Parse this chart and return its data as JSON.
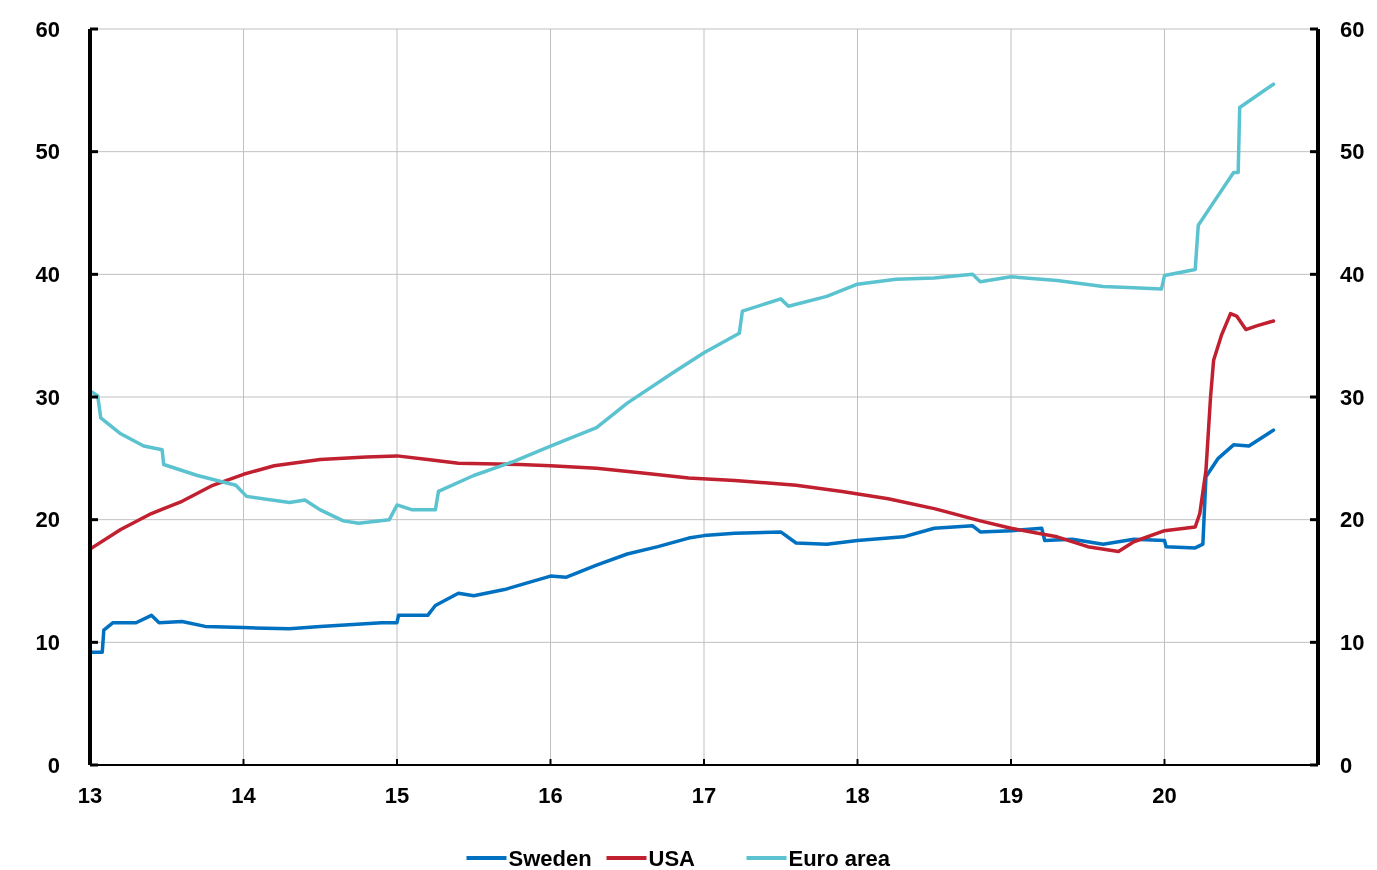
{
  "chart_data": {
    "type": "line",
    "xlim": [
      13,
      21
    ],
    "xticks": [
      13,
      14,
      15,
      16,
      17,
      18,
      19,
      20
    ],
    "ylim": [
      0,
      60
    ],
    "yticks": [
      0,
      10,
      20,
      30,
      40,
      50,
      60
    ],
    "y2lim": [
      0,
      60
    ],
    "y2ticks": [
      0,
      10,
      20,
      30,
      40,
      50,
      60
    ],
    "grid": true,
    "legend": "bottom",
    "marker": "none",
    "line_style": "solid",
    "series": [
      {
        "name": "Sweden",
        "color": "#0070c0",
        "x": [
          13.0,
          13.08,
          13.09,
          13.15,
          13.3,
          13.4,
          13.45,
          13.6,
          13.75,
          14.0,
          14.3,
          14.5,
          14.9,
          15.0,
          15.01,
          15.2,
          15.25,
          15.4,
          15.5,
          15.7,
          16.0,
          16.1,
          16.3,
          16.5,
          16.7,
          16.9,
          17.0,
          17.2,
          17.5,
          17.6,
          17.8,
          18.0,
          18.3,
          18.5,
          18.75,
          18.8,
          19.0,
          19.2,
          19.22,
          19.4,
          19.6,
          19.8,
          20.0,
          20.01,
          20.2,
          20.25,
          20.27,
          20.35,
          20.45,
          20.55,
          20.71
        ],
        "values": [
          9.2,
          9.2,
          11.0,
          11.6,
          11.6,
          12.2,
          11.6,
          11.7,
          11.3,
          11.2,
          11.1,
          11.3,
          11.6,
          11.6,
          12.2,
          12.2,
          13.0,
          14.0,
          13.8,
          14.3,
          15.4,
          15.3,
          16.3,
          17.2,
          17.8,
          18.5,
          18.7,
          18.9,
          19.0,
          18.1,
          18.0,
          18.3,
          18.6,
          19.3,
          19.5,
          19.0,
          19.1,
          19.3,
          18.3,
          18.4,
          18.0,
          18.4,
          18.3,
          17.8,
          17.7,
          18.0,
          23.5,
          25.0,
          26.1,
          26.0,
          27.3
        ]
      },
      {
        "name": "USA",
        "color": "#c0202f",
        "x": [
          13.0,
          13.2,
          13.4,
          13.6,
          13.8,
          14.0,
          14.2,
          14.5,
          14.8,
          15.0,
          15.2,
          15.4,
          15.8,
          16.0,
          16.3,
          16.6,
          16.9,
          17.2,
          17.6,
          17.9,
          18.2,
          18.5,
          18.8,
          19.0,
          19.3,
          19.5,
          19.7,
          19.8,
          20.0,
          20.2,
          20.23,
          20.27,
          20.3,
          20.32,
          20.37,
          20.43,
          20.47,
          20.53,
          20.6,
          20.71
        ],
        "values": [
          17.6,
          19.2,
          20.5,
          21.5,
          22.8,
          23.7,
          24.4,
          24.9,
          25.1,
          25.2,
          24.9,
          24.6,
          24.5,
          24.4,
          24.2,
          23.8,
          23.4,
          23.2,
          22.8,
          22.3,
          21.7,
          20.9,
          19.9,
          19.3,
          18.6,
          17.8,
          17.4,
          18.2,
          19.1,
          19.4,
          20.5,
          24.0,
          30.0,
          33.0,
          35.0,
          36.8,
          36.6,
          35.5,
          35.8,
          36.2
        ]
      },
      {
        "name": "Euro area",
        "color": "#5bc2d0",
        "x": [
          13.0,
          13.05,
          13.07,
          13.2,
          13.35,
          13.47,
          13.48,
          13.7,
          13.95,
          14.02,
          14.3,
          14.4,
          14.5,
          14.65,
          14.75,
          14.95,
          15.0,
          15.1,
          15.25,
          15.27,
          15.5,
          15.75,
          16.0,
          16.3,
          16.5,
          16.8,
          17.0,
          17.23,
          17.25,
          17.5,
          17.55,
          17.8,
          18.0,
          18.25,
          18.5,
          18.75,
          18.8,
          19.0,
          19.3,
          19.6,
          19.8,
          19.98,
          20.0,
          20.2,
          20.22,
          20.3,
          20.45,
          20.48,
          20.49,
          20.71
        ],
        "values": [
          30.5,
          30.1,
          28.3,
          27.0,
          26.0,
          25.7,
          24.5,
          23.6,
          22.8,
          21.9,
          21.4,
          21.6,
          20.8,
          19.9,
          19.7,
          20.0,
          21.2,
          20.8,
          20.8,
          22.3,
          23.6,
          24.7,
          26.0,
          27.5,
          29.5,
          32.0,
          33.6,
          35.2,
          37.0,
          38.0,
          37.4,
          38.2,
          39.2,
          39.6,
          39.7,
          40.0,
          39.4,
          39.8,
          39.5,
          39.0,
          38.9,
          38.8,
          39.9,
          40.4,
          44.0,
          45.5,
          48.3,
          48.3,
          53.6,
          55.5
        ]
      }
    ]
  }
}
